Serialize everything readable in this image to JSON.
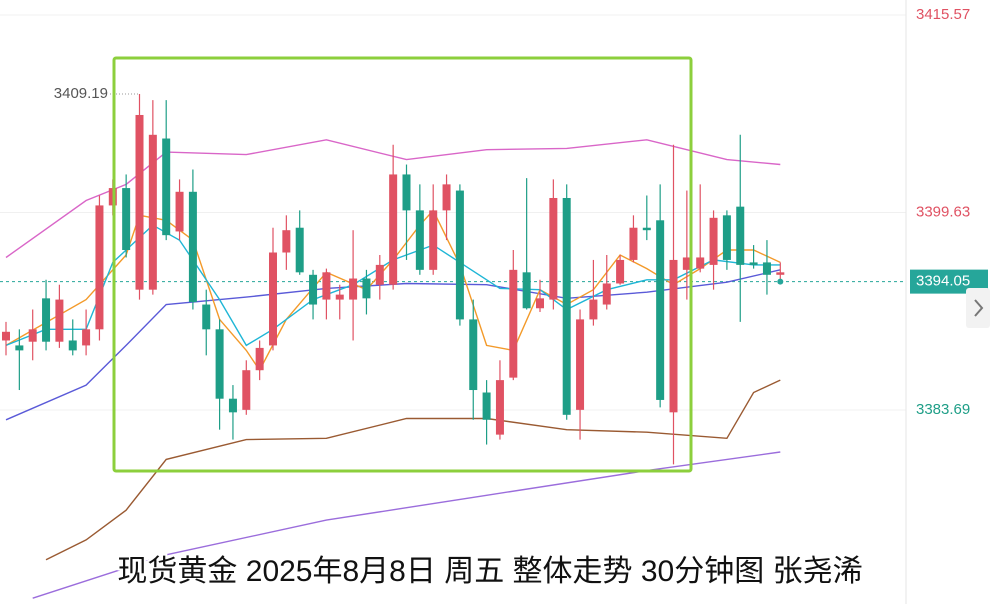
{
  "chart_data": {
    "type": "candlestick",
    "title": "现货黄金 2025年8月8日 周五 整体走势 30分钟图 张尧浠",
    "ylim": [
      3368.03,
      3416.78
    ],
    "yticks": [
      3415.57,
      3399.63,
      3383.69
    ],
    "ytick_colors": [
      "#e05263",
      "#e05263",
      "#1e9e87"
    ],
    "up_color": "#e05263",
    "down_color": "#1e9e87",
    "last_price": 3394.05,
    "last_price_color": "#26a69a",
    "max_price": 3409.19,
    "max_index": 10,
    "candles": [
      [
        3389.3,
        3390.8,
        3388.1,
        3390.0
      ],
      [
        3388.9,
        3390.2,
        3385.3,
        3388.5
      ],
      [
        3389.2,
        3391.8,
        3387.7,
        3390.2
      ],
      [
        3392.7,
        3394.2,
        3388.5,
        3389.2
      ],
      [
        3389.2,
        3393.8,
        3388.7,
        3392.6
      ],
      [
        3389.3,
        3391.0,
        3388.1,
        3388.5
      ],
      [
        3388.9,
        3391.8,
        3388.1,
        3390.2
      ],
      [
        3390.2,
        3401.0,
        3389.3,
        3400.2
      ],
      [
        3400.2,
        3402.3,
        3399.4,
        3401.6
      ],
      [
        3401.6,
        3402.7,
        3396.0,
        3396.6
      ],
      [
        3393.4,
        3409.19,
        3392.6,
        3407.5
      ],
      [
        3393.4,
        3408.7,
        3393.0,
        3405.9
      ],
      [
        3405.6,
        3408.7,
        3397.4,
        3397.8
      ],
      [
        3398.1,
        3402.3,
        3397.4,
        3401.3
      ],
      [
        3401.3,
        3403.1,
        3391.8,
        3392.4
      ],
      [
        3392.2,
        3393.4,
        3388.1,
        3390.2
      ],
      [
        3390.2,
        3391.0,
        3382.1,
        3384.6
      ],
      [
        3384.6,
        3385.7,
        3381.3,
        3383.5
      ],
      [
        3383.7,
        3387.7,
        3383.3,
        3386.9
      ],
      [
        3386.9,
        3389.3,
        3386.1,
        3388.7
      ],
      [
        3388.9,
        3398.4,
        3388.5,
        3396.4
      ],
      [
        3396.4,
        3399.4,
        3395.0,
        3398.2
      ],
      [
        3398.4,
        3399.8,
        3394.6,
        3394.8
      ],
      [
        3394.6,
        3395.0,
        3391.0,
        3392.2
      ],
      [
        3392.6,
        3395.1,
        3391.0,
        3394.8
      ],
      [
        3392.6,
        3393.8,
        3391.0,
        3393.0
      ],
      [
        3392.6,
        3398.2,
        3389.3,
        3394.3
      ],
      [
        3394.3,
        3395.0,
        3391.4,
        3392.7
      ],
      [
        3393.8,
        3396.2,
        3392.6,
        3395.4
      ],
      [
        3393.8,
        3405.1,
        3393.4,
        3402.7
      ],
      [
        3402.7,
        3403.5,
        3395.8,
        3399.8
      ],
      [
        3399.8,
        3401.9,
        3394.6,
        3395.0
      ],
      [
        3395.0,
        3401.9,
        3394.6,
        3399.8
      ],
      [
        3399.8,
        3402.7,
        3397.4,
        3401.9
      ],
      [
        3401.4,
        3401.9,
        3390.5,
        3391.0
      ],
      [
        3391.0,
        3392.6,
        3382.9,
        3385.3
      ],
      [
        3385.1,
        3386.1,
        3380.9,
        3382.9
      ],
      [
        3381.7,
        3387.7,
        3381.3,
        3386.1
      ],
      [
        3386.3,
        3396.6,
        3386.1,
        3395.0
      ],
      [
        3394.8,
        3402.4,
        3391.8,
        3391.9
      ],
      [
        3391.9,
        3394.2,
        3391.6,
        3392.7
      ],
      [
        3392.6,
        3402.3,
        3391.8,
        3400.8
      ],
      [
        3400.8,
        3401.9,
        3382.9,
        3383.3
      ],
      [
        3383.7,
        3391.8,
        3381.3,
        3391.0
      ],
      [
        3391.0,
        3395.8,
        3390.5,
        3392.6
      ],
      [
        3392.2,
        3396.2,
        3391.8,
        3393.9
      ],
      [
        3393.9,
        3396.2,
        3393.8,
        3395.8
      ],
      [
        3395.8,
        3399.4,
        3395.6,
        3398.4
      ],
      [
        3398.4,
        3401.0,
        3397.4,
        3398.2
      ],
      [
        3399.0,
        3401.9,
        3383.9,
        3384.5
      ],
      [
        3383.5,
        3405.1,
        3379.3,
        3395.8
      ],
      [
        3395.0,
        3401.4,
        3392.6,
        3396.0
      ],
      [
        3395.1,
        3401.9,
        3394.8,
        3396.0
      ],
      [
        3395.4,
        3399.8,
        3393.4,
        3399.2
      ],
      [
        3399.4,
        3399.8,
        3395.0,
        3395.8
      ],
      [
        3400.1,
        3405.9,
        3390.8,
        3395.4
      ],
      [
        3395.6,
        3397.0,
        3395.1,
        3395.4
      ],
      [
        3395.6,
        3397.4,
        3393.0,
        3394.6
      ],
      [
        3394.6,
        3395.6,
        3394.0,
        3394.8
      ]
    ],
    "lines": [
      {
        "color": "#d966c8",
        "x": [
          0,
          6,
          9,
          12,
          18,
          24,
          30,
          36,
          42,
          48,
          54,
          58
        ],
        "values": [
          3396.0,
          3400.6,
          3401.9,
          3404.5,
          3404.3,
          3405.5,
          3403.9,
          3404.7,
          3404.8,
          3405.5,
          3403.9,
          3403.5
        ]
      },
      {
        "color": "#5a5ad8",
        "x": [
          0,
          6,
          9,
          12,
          18,
          24,
          30,
          36,
          42,
          48,
          54,
          58
        ],
        "values": [
          3382.9,
          3385.7,
          3388.9,
          3392.2,
          3392.8,
          3393.5,
          3393.9,
          3393.8,
          3392.7,
          3393.2,
          3394.0,
          3395.0
        ]
      },
      {
        "color": "#9a5a32",
        "x": [
          3,
          6,
          9,
          12,
          18,
          24,
          30,
          36,
          42,
          48,
          54,
          56,
          58
        ],
        "values": [
          3371.6,
          3373.2,
          3375.6,
          3379.7,
          3381.3,
          3381.4,
          3383.0,
          3383.0,
          3382.1,
          3381.9,
          3381.4,
          3385.1,
          3386.1
        ]
      },
      {
        "color": "#9b6ddc",
        "x": [
          2,
          12,
          24,
          36,
          48,
          58
        ],
        "values": [
          3368.5,
          3372.0,
          3374.8,
          3376.8,
          3378.8,
          3380.3
        ]
      },
      {
        "color": "#f39a2a",
        "x": [
          0,
          6,
          9,
          10,
          12,
          14,
          16,
          18,
          19,
          21,
          24,
          27,
          29,
          31,
          32,
          34,
          36,
          38,
          40,
          42,
          44,
          46,
          48,
          50,
          52,
          54,
          56,
          58
        ],
        "values": [
          3388.9,
          3392.6,
          3396.2,
          3399.4,
          3399.0,
          3397.4,
          3391.0,
          3388.5,
          3386.9,
          3391.0,
          3394.8,
          3393.4,
          3395.8,
          3398.6,
          3399.8,
          3395.4,
          3388.9,
          3388.5,
          3393.4,
          3392.2,
          3393.4,
          3396.2,
          3395.1,
          3393.8,
          3395.1,
          3396.6,
          3396.6,
          3395.6
        ]
      },
      {
        "color": "#1fb6d6",
        "x": [
          0,
          3,
          6,
          8,
          11,
          13,
          16,
          18,
          20,
          23,
          26,
          29,
          32,
          34,
          37,
          40,
          42,
          45,
          48,
          50,
          53,
          56,
          58
        ],
        "values": [
          3388.9,
          3390.2,
          3390.2,
          3395.6,
          3398.6,
          3397.4,
          3392.6,
          3388.9,
          3390.2,
          3392.6,
          3393.8,
          3395.8,
          3397.0,
          3395.6,
          3393.5,
          3393.4,
          3391.8,
          3393.4,
          3394.2,
          3394.2,
          3395.8,
          3395.4,
          3395.4
        ]
      }
    ]
  }
}
